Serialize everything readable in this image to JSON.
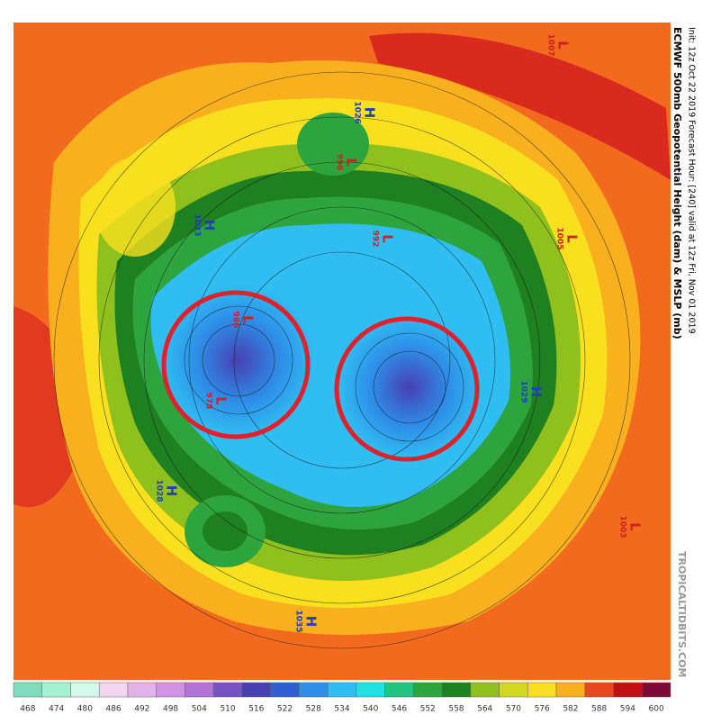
{
  "header": {
    "title": "ECMWF 500mb Geopotential Height (dam) & MSLP (mb)",
    "subtitle": "Init: 12z Oct 22 2019   Forecast Hour: [240]   valid at 12z Fri, Nov 01 2019",
    "credit": "TROPICALTIDBITS.COM"
  },
  "pressure_centers": [
    {
      "symbol": "H",
      "value": "1033"
    },
    {
      "symbol": "H",
      "value": "1028"
    },
    {
      "symbol": "H",
      "value": "1026"
    },
    {
      "symbol": "L",
      "value": "1007"
    },
    {
      "symbol": "L",
      "value": "1003"
    },
    {
      "symbol": "L",
      "value": "978"
    },
    {
      "symbol": "L",
      "value": "986"
    },
    {
      "symbol": "L",
      "value": "996"
    },
    {
      "symbol": "L",
      "value": "992"
    },
    {
      "symbol": "H",
      "value": "1035"
    },
    {
      "symbol": "H",
      "value": "1029"
    },
    {
      "symbol": "L",
      "value": "1005"
    }
  ],
  "colorbar": {
    "labels": [
      468,
      474,
      480,
      486,
      492,
      498,
      504,
      510,
      516,
      522,
      528,
      534,
      540,
      546,
      552,
      558,
      564,
      570,
      576,
      582,
      588,
      594,
      600
    ],
    "colors": [
      "#7fdcbc",
      "#a6f0d4",
      "#d4f8ea",
      "#f2d6f2",
      "#e2b2ea",
      "#d092e2",
      "#b274d4",
      "#7454c2",
      "#4640b2",
      "#2e5ed2",
      "#2e8ee8",
      "#30bef2",
      "#20e0e4",
      "#22c484",
      "#2ea43e",
      "#1e8020",
      "#90c01e",
      "#d2d81e",
      "#f8e01e",
      "#f8b01e",
      "#e8461e",
      "#c21010",
      "#7e0a3a"
    ]
  }
}
